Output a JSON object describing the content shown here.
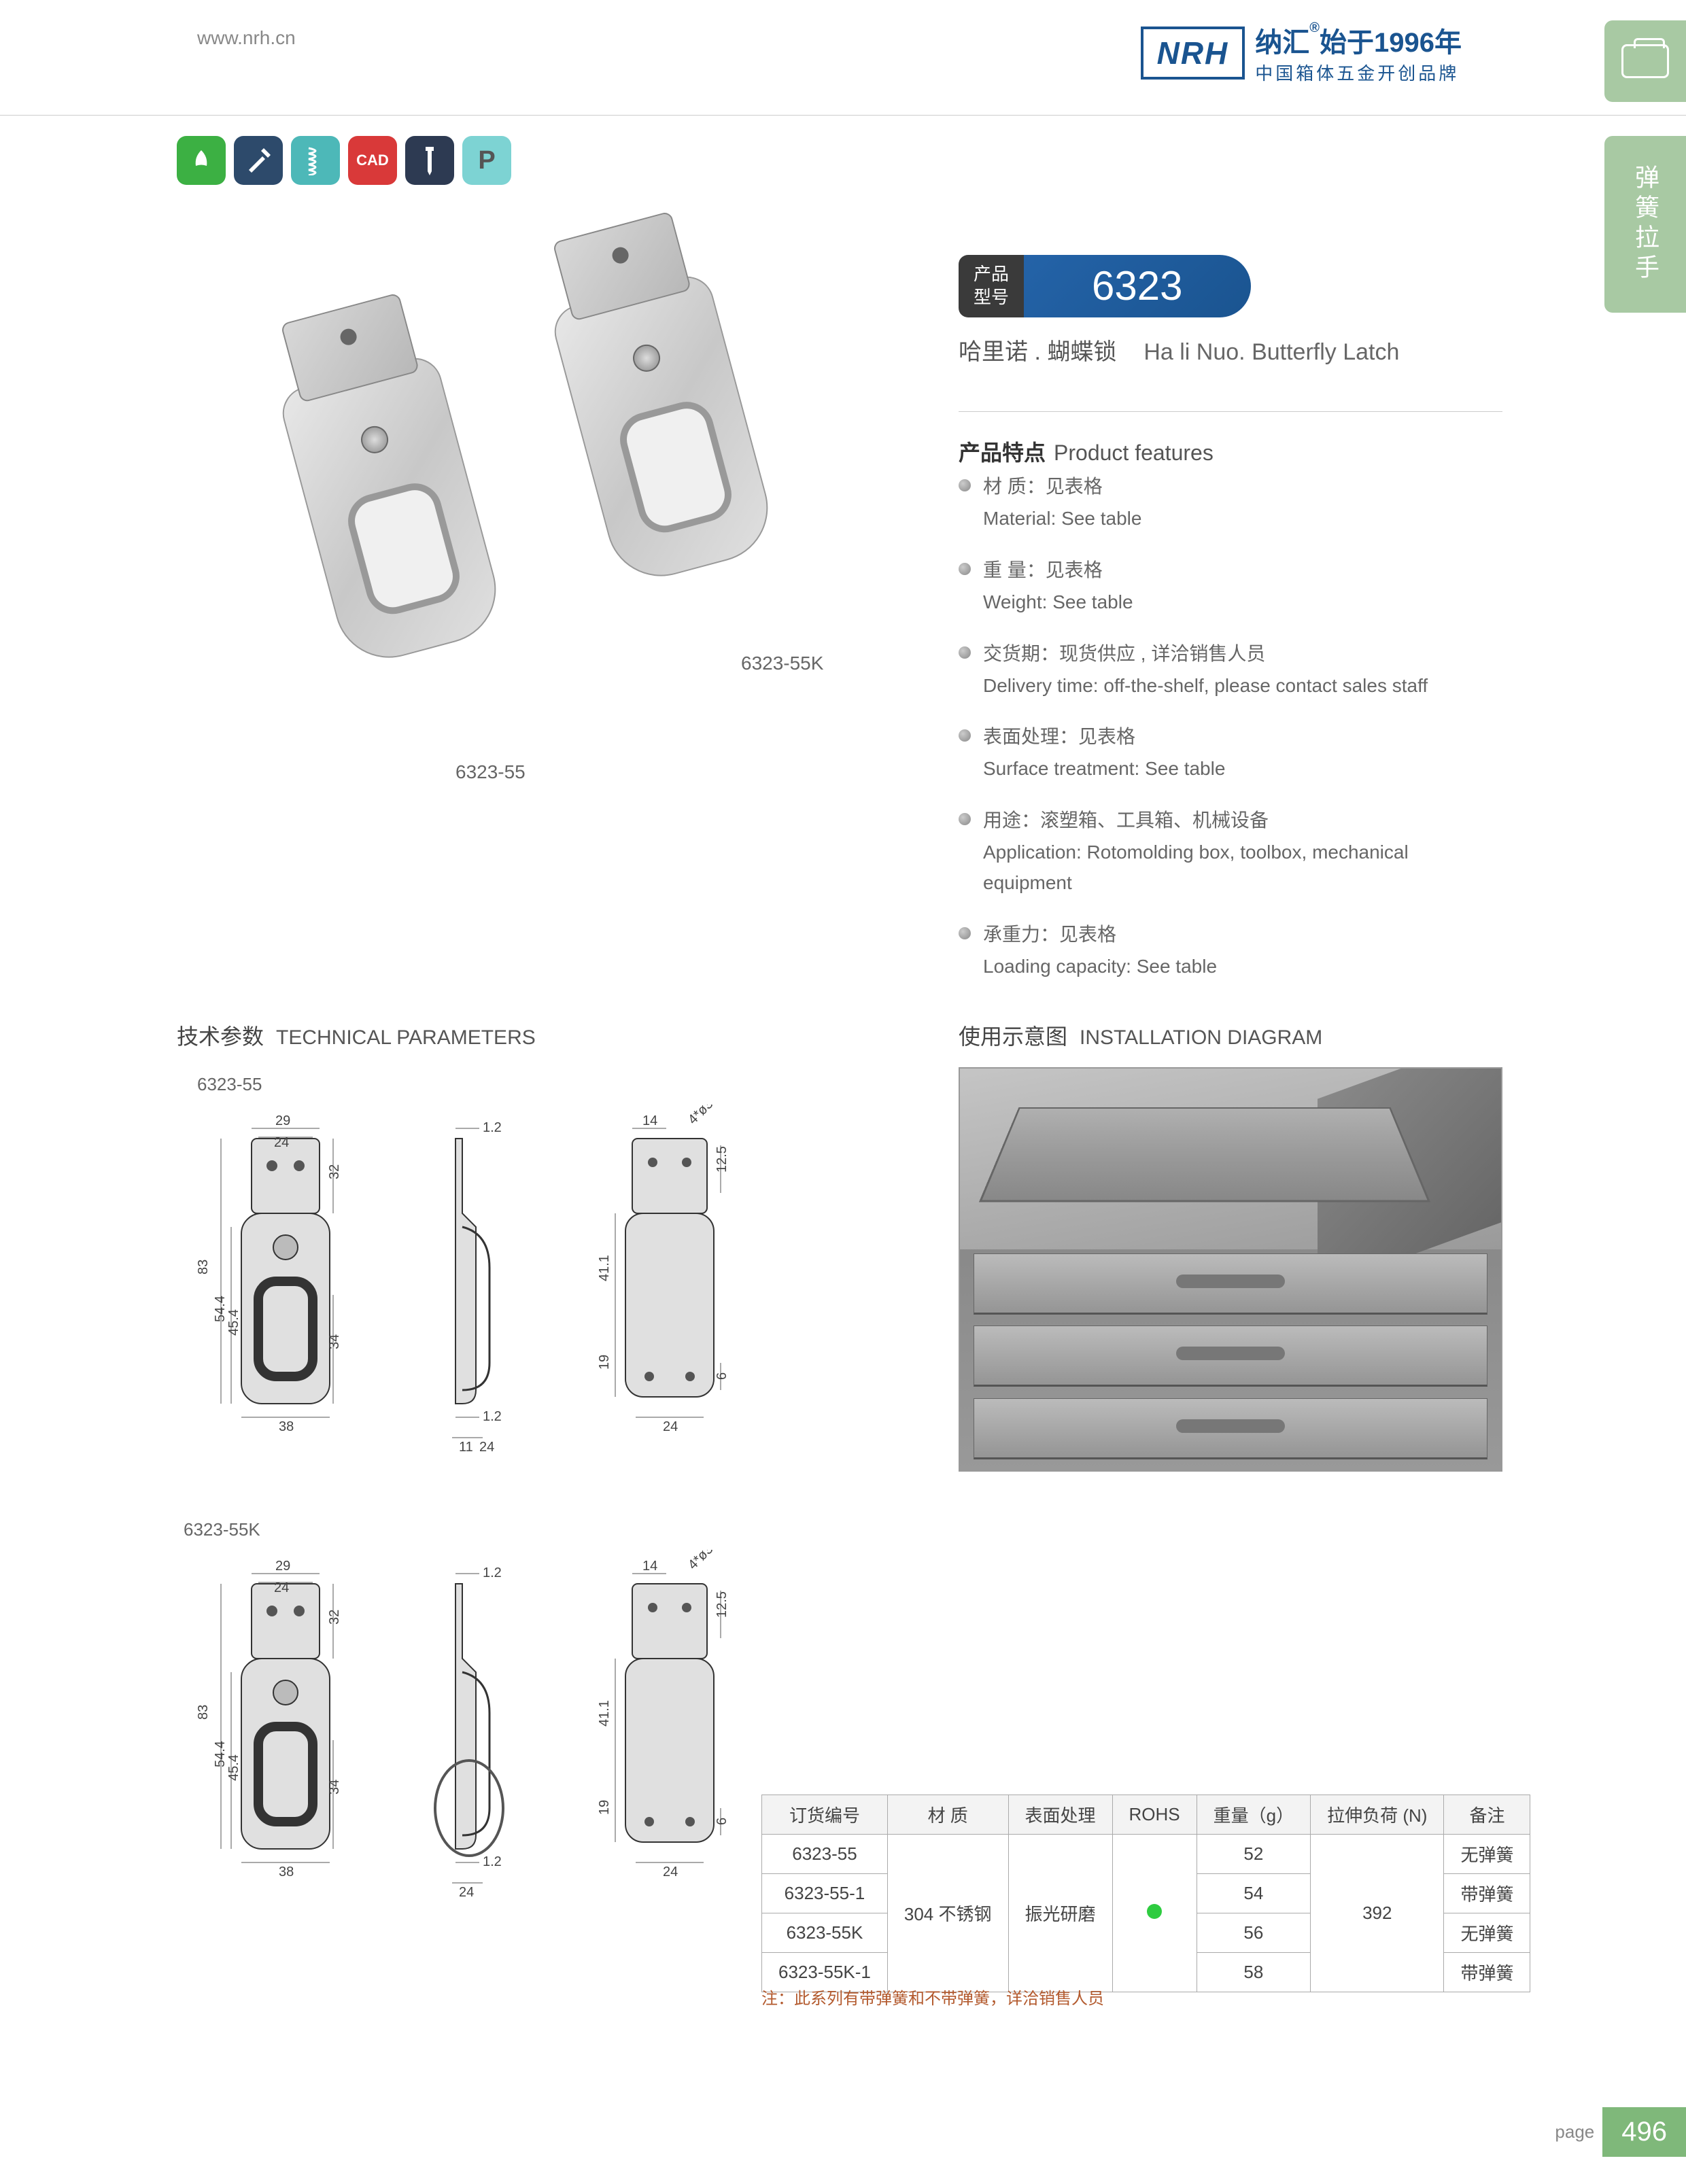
{
  "header": {
    "website": "www.nrh.cn",
    "logo_text": "NRH",
    "tagline_cn": "纳汇",
    "tagline_year": "始于1996年",
    "tagline_sub": "中国箱体五金开创品牌"
  },
  "side_tab2": "弹簧拉手",
  "product": {
    "model_label_cn1": "产品",
    "model_label_cn2": "型号",
    "model_number": "6323",
    "name_cn": "哈里诺 . 蝴蝶锁",
    "name_en": "Ha li Nuo. Butterfly Latch",
    "image_labels": {
      "latch1": "6323-55",
      "latch2": "6323-55K"
    }
  },
  "features": {
    "heading_cn": "产品特点",
    "heading_en": "Product features",
    "items": [
      {
        "cn": "材  质：见表格",
        "en": "Material: See table"
      },
      {
        "cn": "重  量：见表格",
        "en": "Weight: See table"
      },
      {
        "cn": "交货期：现货供应 , 详洽销售人员",
        "en": "Delivery time: off-the-shelf, please contact sales staff"
      },
      {
        "cn": "表面处理：见表格",
        "en": "Surface treatment:  See table"
      },
      {
        "cn": "用途：滚塑箱、工具箱、机械设备",
        "en": "Application: Rotomolding box, toolbox, mechanical equipment"
      },
      {
        "cn": "承重力：见表格",
        "en": "Loading capacity: See table"
      }
    ]
  },
  "sections": {
    "tech_cn": "技术参数",
    "tech_en": "TECHNICAL PARAMETERS",
    "install_cn": "使用示意图",
    "install_en": "INSTALLATION DIAGRAM"
  },
  "drawings": {
    "model1": "6323-55",
    "model2": "6323-55K",
    "dims": {
      "h_total": "83",
      "h_54": "54.4",
      "h_45": "45.4",
      "h_34": "34",
      "h_32": "32",
      "w_38": "38",
      "w_29": "29",
      "w_24": "24",
      "w_11": "11",
      "t_12": "1.2",
      "w_14": "14",
      "h_41": "41.1",
      "h_125": "12.5",
      "h_19": "19",
      "h_6": "6",
      "hole": "4*ø3.4"
    }
  },
  "table": {
    "columns": [
      "订货编号",
      "材  质",
      "表面处理",
      "ROHS",
      "重量（g）",
      "拉伸负荷 (N)",
      "备注"
    ],
    "material": "304 不锈钢",
    "surface": "振光研磨",
    "load": "392",
    "rows": [
      {
        "code": "6323-55",
        "weight": "52",
        "remark": "无弹簧"
      },
      {
        "code": "6323-55-1",
        "weight": "54",
        "remark": "带弹簧"
      },
      {
        "code": "6323-55K",
        "weight": "56",
        "remark": "无弹簧"
      },
      {
        "code": "6323-55K-1",
        "weight": "58",
        "remark": "带弹簧"
      }
    ],
    "note": "注：此系列有带弹簧和不带弹簧，详洽销售人员"
  },
  "footer": {
    "page_label": "page",
    "page_num": "496"
  }
}
